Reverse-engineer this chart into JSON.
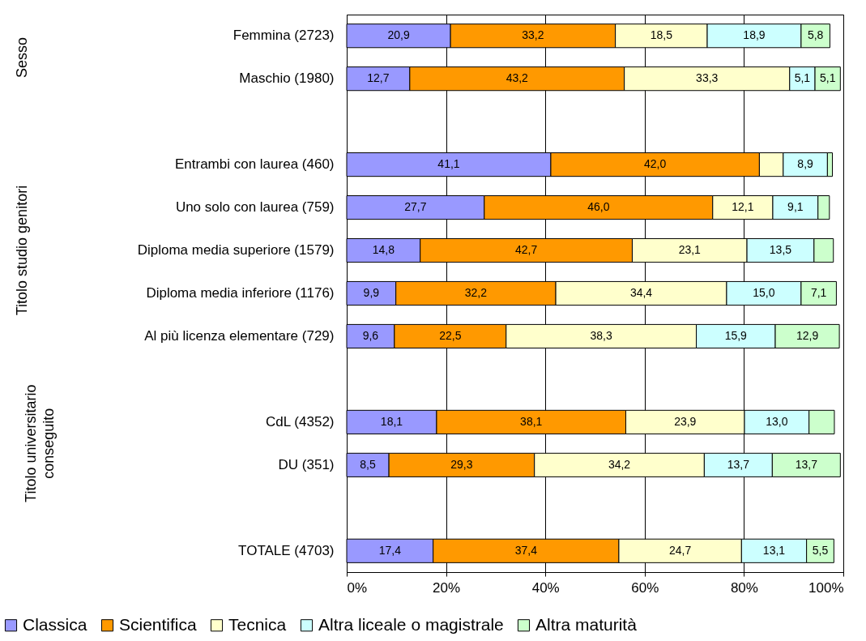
{
  "chart_data": {
    "type": "bar",
    "orientation": "horizontal",
    "stacked": true,
    "categories": [
      "Femmina (2723)",
      "Maschio (1980)",
      null,
      "Entrambi con laurea (460)",
      "Uno solo con laurea (759)",
      "Diploma media superiore (1579)",
      "Diploma media inferiore (1176)",
      "Al più licenza elementare (729)",
      null,
      "CdL (4352)",
      "DU (351)",
      null,
      "TOTALE (4703)"
    ],
    "series": [
      {
        "name": "Classica",
        "color": "#9999ff",
        "values": [
          20.9,
          12.7,
          null,
          41.1,
          27.7,
          14.8,
          9.9,
          9.6,
          null,
          18.1,
          8.5,
          null,
          17.4
        ],
        "value_labels": [
          "20,9",
          "12,7",
          null,
          "41,1",
          "27,7",
          "14,8",
          "9,9",
          "9,6",
          null,
          "18,1",
          "8,5",
          null,
          "17,4"
        ]
      },
      {
        "name": "Scientifica",
        "color": "#ff9900",
        "values": [
          33.2,
          43.2,
          null,
          42.0,
          46.0,
          42.7,
          32.2,
          22.5,
          null,
          38.1,
          29.3,
          null,
          37.4
        ],
        "value_labels": [
          "33,2",
          "43,2",
          null,
          "42,0",
          "46,0",
          "42,7",
          "32,2",
          "22,5",
          null,
          "38,1",
          "29,3",
          null,
          "37,4"
        ]
      },
      {
        "name": "Tecnica",
        "color": "#ffffcc",
        "values": [
          18.5,
          33.3,
          null,
          4.8,
          12.1,
          23.1,
          34.4,
          38.3,
          null,
          23.9,
          34.2,
          null,
          24.7
        ],
        "value_labels": [
          "18,5",
          "33,3",
          null,
          null,
          "12,1",
          "23,1",
          "34,4",
          "38,3",
          null,
          "23,9",
          "34,2",
          null,
          "24,7"
        ]
      },
      {
        "name": "Altra liceale o magistrale",
        "color": "#ccffff",
        "values": [
          18.9,
          5.1,
          null,
          8.9,
          9.1,
          13.5,
          15.0,
          15.9,
          null,
          13.0,
          13.7,
          null,
          13.1
        ],
        "value_labels": [
          "18,9",
          "5,1",
          null,
          "8,9",
          "9,1",
          "13,5",
          "15,0",
          "15,9",
          null,
          "13,0",
          "13,7",
          null,
          "13,1"
        ]
      },
      {
        "name": "Altra maturità",
        "color": "#ccffcc",
        "values": [
          5.8,
          5.1,
          null,
          1.0,
          2.3,
          3.9,
          7.1,
          12.9,
          null,
          5.1,
          13.7,
          null,
          5.5
        ],
        "value_labels": [
          "5,8",
          "5,1",
          null,
          null,
          null,
          null,
          "7,1",
          "12,9",
          null,
          null,
          "13,7",
          null,
          "5,5"
        ]
      }
    ],
    "xlim": [
      0,
      100
    ],
    "xticks": [
      {
        "value": 0,
        "label": "0%"
      },
      {
        "value": 20,
        "label": "20%"
      },
      {
        "value": 40,
        "label": "40%"
      },
      {
        "value": 60,
        "label": "60%"
      },
      {
        "value": 80,
        "label": "80%"
      },
      {
        "value": 100,
        "label": "100%"
      }
    ],
    "annotations": [
      "Sesso",
      "Titolo studio genitori",
      "Titolo universitario conseguito"
    ],
    "grid": "x",
    "legend": "bottom"
  }
}
